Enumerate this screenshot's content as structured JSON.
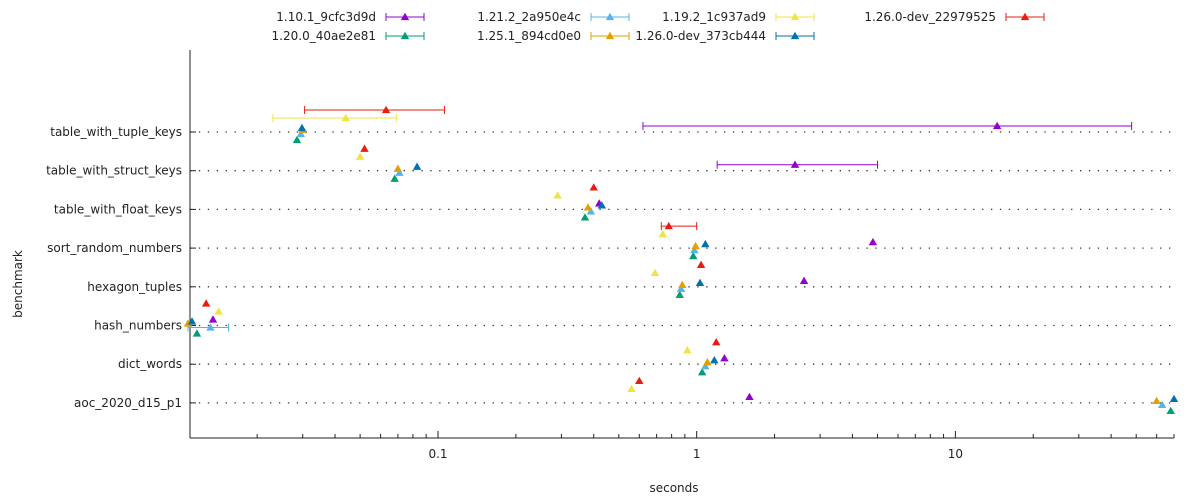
{
  "chart_data": {
    "type": "scatter",
    "orientation": "horizontal",
    "title": "",
    "xlabel": "seconds",
    "ylabel": "benchmark",
    "xscale": "log",
    "xlim": [
      0.011,
      70
    ],
    "x_ticks": [
      0.1,
      1,
      10
    ],
    "x_tick_labels": [
      "0.1",
      "1",
      "10"
    ],
    "grid": "dotted horizontal per benchmark",
    "legend_position": "top",
    "categories": [
      "table_with_tuple_keys",
      "table_with_struct_keys",
      "table_with_float_keys",
      "sort_random_numbers",
      "hexagon_tuples",
      "hash_numbers",
      "dict_words",
      "aoc_2020_d15_p1"
    ],
    "series": [
      {
        "name": "1.10.1_9cfc3d9d",
        "color": "#9400d3",
        "points": [
          {
            "category": "table_with_tuple_keys",
            "x": 14.5,
            "low": 0.62,
            "high": 48
          },
          {
            "category": "table_with_struct_keys",
            "x": 2.4,
            "low": 1.2,
            "high": 5.0
          },
          {
            "category": "table_with_float_keys",
            "x": 0.42
          },
          {
            "category": "sort_random_numbers",
            "x": 4.8
          },
          {
            "category": "hexagon_tuples",
            "x": 2.6
          },
          {
            "category": "hash_numbers",
            "x": 0.0135
          },
          {
            "category": "dict_words",
            "x": 1.28
          },
          {
            "category": "aoc_2020_d15_p1",
            "x": 1.6
          }
        ]
      },
      {
        "name": "1.20.0_40ae2e81",
        "color": "#009e73",
        "points": [
          {
            "category": "table_with_tuple_keys",
            "x": 0.0285
          },
          {
            "category": "table_with_struct_keys",
            "x": 0.068
          },
          {
            "category": "table_with_float_keys",
            "x": 0.37
          },
          {
            "category": "sort_random_numbers",
            "x": 0.97
          },
          {
            "category": "hexagon_tuples",
            "x": 0.86
          },
          {
            "category": "hash_numbers",
            "x": 0.0117
          },
          {
            "category": "dict_words",
            "x": 1.05
          },
          {
            "category": "aoc_2020_d15_p1",
            "x": 68
          }
        ]
      },
      {
        "name": "1.21.2_2a950e4c",
        "color": "#56b4e9",
        "points": [
          {
            "category": "table_with_tuple_keys",
            "x": 0.0295
          },
          {
            "category": "table_with_struct_keys",
            "x": 0.071
          },
          {
            "category": "table_with_float_keys",
            "x": 0.39
          },
          {
            "category": "sort_random_numbers",
            "x": 0.98
          },
          {
            "category": "hexagon_tuples",
            "x": 0.87
          },
          {
            "category": "hash_numbers",
            "x": 0.0132,
            "low": 0.0108,
            "high": 0.0155
          },
          {
            "category": "dict_words",
            "x": 1.08
          },
          {
            "category": "aoc_2020_d15_p1",
            "x": 63
          }
        ]
      },
      {
        "name": "1.25.1_894cd0e0",
        "color": "#e69f00",
        "points": [
          {
            "category": "table_with_tuple_keys",
            "x": 0.03
          },
          {
            "category": "table_with_struct_keys",
            "x": 0.07
          },
          {
            "category": "table_with_float_keys",
            "x": 0.38
          },
          {
            "category": "sort_random_numbers",
            "x": 0.99
          },
          {
            "category": "hexagon_tuples",
            "x": 0.88
          },
          {
            "category": "hash_numbers",
            "x": 0.0108
          },
          {
            "category": "dict_words",
            "x": 1.1
          },
          {
            "category": "aoc_2020_d15_p1",
            "x": 60
          }
        ]
      },
      {
        "name": "1.19.2_1c937ad9",
        "color": "#f0e442",
        "points": [
          {
            "category": "table_with_tuple_keys",
            "x": 0.044,
            "low": 0.023,
            "high": 0.069
          },
          {
            "category": "table_with_struct_keys",
            "x": 0.05
          },
          {
            "category": "table_with_float_keys",
            "x": 0.29
          },
          {
            "category": "sort_random_numbers",
            "x": 0.74
          },
          {
            "category": "hexagon_tuples",
            "x": 0.69
          },
          {
            "category": "hash_numbers",
            "x": 0.0142
          },
          {
            "category": "dict_words",
            "x": 0.92
          },
          {
            "category": "aoc_2020_d15_p1",
            "x": 0.56
          }
        ]
      },
      {
        "name": "1.26.0-dev_373cb444",
        "color": "#0072b2",
        "points": [
          {
            "category": "table_with_tuple_keys",
            "x": 0.0298
          },
          {
            "category": "table_with_struct_keys",
            "x": 0.083
          },
          {
            "category": "table_with_float_keys",
            "x": 0.43
          },
          {
            "category": "sort_random_numbers",
            "x": 1.08
          },
          {
            "category": "hexagon_tuples",
            "x": 1.03
          },
          {
            "category": "hash_numbers",
            "x": 0.0112
          },
          {
            "category": "dict_words",
            "x": 1.17
          },
          {
            "category": "aoc_2020_d15_p1",
            "x": 70
          }
        ]
      },
      {
        "name": "1.26.0-dev_22979525",
        "color": "#e51e10",
        "points": [
          {
            "category": "table_with_tuple_keys",
            "x": 0.063,
            "low": 0.0305,
            "high": 0.106
          },
          {
            "category": "table_with_struct_keys",
            "x": 0.052
          },
          {
            "category": "table_with_float_keys",
            "x": 0.4
          },
          {
            "category": "sort_random_numbers",
            "x": 0.78,
            "low": 0.73,
            "high": 1.0
          },
          {
            "category": "hexagon_tuples",
            "x": 1.04
          },
          {
            "category": "hash_numbers",
            "x": 0.0127
          },
          {
            "category": "dict_words",
            "x": 1.19
          },
          {
            "category": "aoc_2020_d15_p1",
            "x": 0.6
          }
        ]
      }
    ]
  }
}
